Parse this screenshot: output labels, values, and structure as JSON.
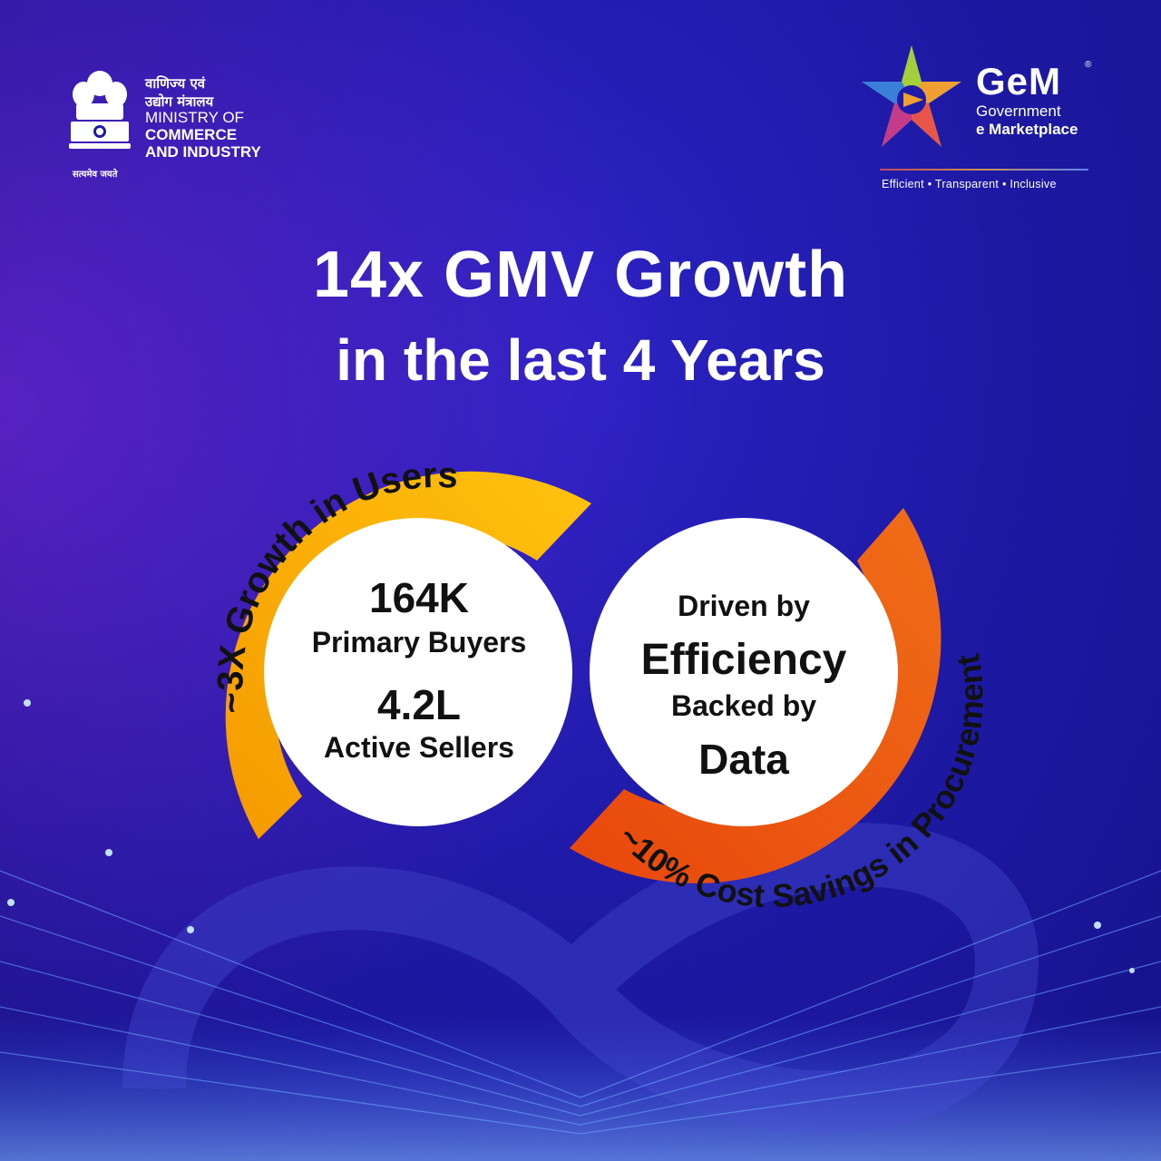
{
  "ministry": {
    "hindi_line1": "वाणिज्य एवं",
    "hindi_line2": "उद्योग मंत्रालय",
    "line1": "MINISTRY OF",
    "line2": "COMMERCE",
    "line3": "AND INDUSTRY",
    "motto": "सत्यमेव जयते"
  },
  "gem": {
    "brand": "GeM",
    "registered": "®",
    "sub1": "Government",
    "sub2": "e Marketplace",
    "tagline": "Efficient • Transparent • Inclusive"
  },
  "headline": {
    "line1": "14x GMV Growth",
    "line2": "in the last 4 Years"
  },
  "left_loop": {
    "arc_text": "~3X Growth in Users",
    "value1": "164K",
    "label1": "Primary Buyers",
    "value2": "4.2L",
    "label2": "Active Sellers"
  },
  "right_loop": {
    "arc_text": "~10% Cost Savings in Procurement",
    "line1": "Driven by",
    "line2": "Efficiency",
    "line3": "Backed by",
    "line4": "Data"
  },
  "colors": {
    "background": "#1f1aa8",
    "left_arc": "#f5a800",
    "right_arc": "#ee4a0e",
    "text": "#ffffff",
    "circle": "#ffffff"
  }
}
